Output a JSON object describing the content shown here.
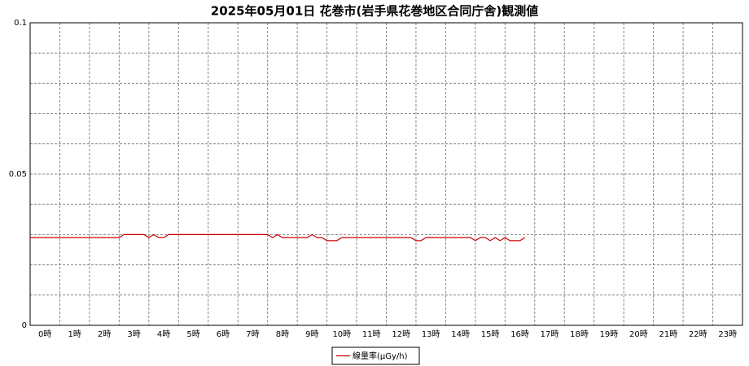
{
  "chart_data": {
    "type": "line",
    "title": "2025年05月01日 花巻市(岩手県花巻地区合同庁舎)観測値",
    "x": [
      0,
      0.1667,
      0.3333,
      0.5,
      0.6667,
      0.8333,
      1,
      1.1667,
      1.3333,
      1.5,
      1.6667,
      1.8333,
      2,
      2.1667,
      2.3333,
      2.5,
      2.6667,
      2.8333,
      3,
      3.1667,
      3.3333,
      3.5,
      3.6667,
      3.8333,
      4,
      4.1667,
      4.3333,
      4.5,
      4.6667,
      4.8333,
      5,
      5.1667,
      5.3333,
      5.5,
      5.6667,
      5.8333,
      6,
      6.1667,
      6.3333,
      6.5,
      6.6667,
      6.8333,
      7,
      7.1667,
      7.3333,
      7.5,
      7.6667,
      7.8333,
      8,
      8.1667,
      8.3333,
      8.5,
      8.6667,
      8.8333,
      9,
      9.1667,
      9.3333,
      9.5,
      9.6667,
      9.8333,
      10,
      10.1667,
      10.3333,
      10.5,
      10.6667,
      10.8333,
      11,
      11.1667,
      11.3333,
      11.5,
      11.6667,
      11.8333,
      12,
      12.1667,
      12.3333,
      12.5,
      12.6667,
      12.8333,
      13,
      13.1667,
      13.3333,
      13.5,
      13.6667,
      13.8333,
      14,
      14.1667,
      14.3333,
      14.5,
      14.6667,
      14.8333,
      15,
      15.1667,
      15.3333,
      15.5,
      15.6667,
      15.8333,
      16,
      16.1667,
      16.3333,
      16.5,
      16.6667
    ],
    "series": [
      {
        "name": "線量率(μGy/h)",
        "color": "#cc0000",
        "values": [
          0.029,
          0.029,
          0.029,
          0.029,
          0.029,
          0.029,
          0.029,
          0.029,
          0.029,
          0.029,
          0.029,
          0.029,
          0.029,
          0.029,
          0.029,
          0.029,
          0.029,
          0.029,
          0.029,
          0.03,
          0.03,
          0.03,
          0.03,
          0.03,
          0.029,
          0.03,
          0.029,
          0.029,
          0.03,
          0.03,
          0.03,
          0.03,
          0.03,
          0.03,
          0.03,
          0.03,
          0.03,
          0.03,
          0.03,
          0.03,
          0.03,
          0.03,
          0.03,
          0.03,
          0.03,
          0.03,
          0.03,
          0.03,
          0.03,
          0.029,
          0.03,
          0.029,
          0.029,
          0.029,
          0.029,
          0.029,
          0.029,
          0.03,
          0.029,
          0.029,
          0.028,
          0.028,
          0.028,
          0.029,
          0.029,
          0.029,
          0.029,
          0.029,
          0.029,
          0.029,
          0.029,
          0.029,
          0.029,
          0.029,
          0.029,
          0.029,
          0.029,
          0.029,
          0.028,
          0.028,
          0.029,
          0.029,
          0.029,
          0.029,
          0.029,
          0.029,
          0.029,
          0.029,
          0.029,
          0.029,
          0.028,
          0.029,
          0.029,
          0.028,
          0.029,
          0.028,
          0.029,
          0.028,
          0.028,
          0.028,
          0.029
        ]
      }
    ],
    "xlim": [
      0,
      24
    ],
    "xticks": [
      {
        "value": 0.5,
        "label": "0時"
      },
      {
        "value": 1.5,
        "label": "1時"
      },
      {
        "value": 2.5,
        "label": "2時"
      },
      {
        "value": 3.5,
        "label": "3時"
      },
      {
        "value": 4.5,
        "label": "4時"
      },
      {
        "value": 5.5,
        "label": "5時"
      },
      {
        "value": 6.5,
        "label": "6時"
      },
      {
        "value": 7.5,
        "label": "7時"
      },
      {
        "value": 8.5,
        "label": "8時"
      },
      {
        "value": 9.5,
        "label": "9時"
      },
      {
        "value": 10.5,
        "label": "10時"
      },
      {
        "value": 11.5,
        "label": "11時"
      },
      {
        "value": 12.5,
        "label": "12時"
      },
      {
        "value": 13.5,
        "label": "13時"
      },
      {
        "value": 14.5,
        "label": "14時"
      },
      {
        "value": 15.5,
        "label": "15時"
      },
      {
        "value": 16.5,
        "label": "16時"
      },
      {
        "value": 17.5,
        "label": "17時"
      },
      {
        "value": 18.5,
        "label": "18時"
      },
      {
        "value": 19.5,
        "label": "19時"
      },
      {
        "value": 20.5,
        "label": "20時"
      },
      {
        "value": 21.5,
        "label": "21時"
      },
      {
        "value": 22.5,
        "label": "22時"
      },
      {
        "value": 23.5,
        "label": "23時"
      }
    ],
    "ylim": [
      0,
      0.1
    ],
    "yticks": [
      0,
      0.05,
      0.1
    ],
    "grid": true,
    "legend": "bottom"
  }
}
